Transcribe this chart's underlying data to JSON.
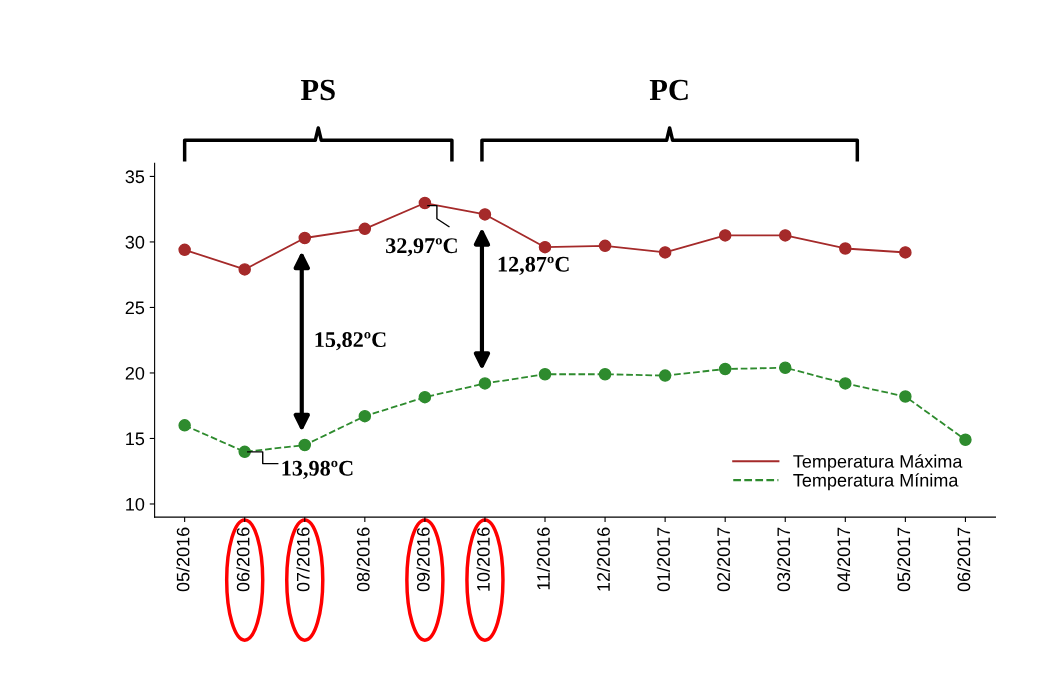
{
  "chart_data": {
    "type": "line",
    "categories": [
      "05/2016",
      "06/2016",
      "07/2016",
      "08/2016",
      "09/2016",
      "10/2016",
      "11/2016",
      "12/2016",
      "01/2017",
      "02/2017",
      "03/2017",
      "04/2017",
      "05/2017",
      "06/2017"
    ],
    "series": [
      {
        "name": "Temperatura Máxima",
        "color": "#a52a2a",
        "line_style": "solid",
        "values": [
          29.4,
          27.9,
          30.3,
          31.0,
          32.97,
          32.1,
          29.6,
          29.7,
          29.2,
          30.5,
          30.5,
          29.5,
          29.2,
          null
        ]
      },
      {
        "name": "Temperatura Mínima",
        "color": "#2e8b2e",
        "line_style": "dashed",
        "values": [
          16.0,
          13.98,
          14.5,
          16.7,
          18.15,
          19.2,
          19.9,
          19.9,
          19.8,
          20.3,
          20.4,
          19.2,
          18.2,
          14.9
        ]
      }
    ],
    "marker": "circle",
    "ylim": [
      9,
      36
    ],
    "yticks": [
      10,
      15,
      20,
      25,
      30,
      35
    ],
    "grid": false,
    "legend": "bottom right",
    "annotations": [
      "PS",
      "PC",
      {
        "text": "32,97ºC",
        "x": "09/2016",
        "y": 32.97
      },
      {
        "text": "13,98ºC",
        "x": "06/2016",
        "y": 13.98
      },
      "15,82ºC",
      "12,87ºC"
    ]
  }
}
